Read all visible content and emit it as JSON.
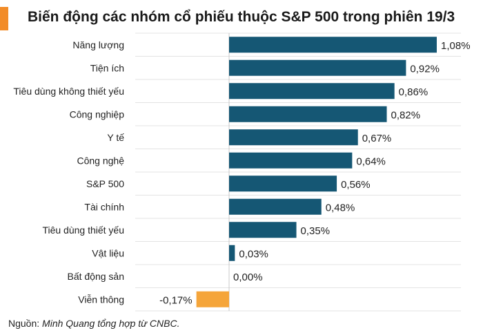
{
  "title": "Biến động các nhóm cổ phiếu thuộc S&P 500 trong phiên 19/3",
  "source_label": "Nguồn:",
  "source_text": "Minh Quang tổng hợp từ CNBC.",
  "colors": {
    "positive": "#155774",
    "negative": "#f5a53a",
    "accent": "#f28c28"
  },
  "chart_data": {
    "type": "bar",
    "orientation": "horizontal",
    "title": "Biến động các nhóm cổ phiếu thuộc S&P 500 trong phiên 19/3",
    "grid": true,
    "categories": [
      "Năng lượng",
      "Tiện ích",
      "Tiêu dùng không thiết yếu",
      "Công nghiệp",
      "Y tế",
      "Công nghệ",
      "S&P 500",
      "Tài chính",
      "Tiêu dùng thiết yếu",
      "Vật liệu",
      "Bất động sản",
      "Viễn thông"
    ],
    "values": [
      1.08,
      0.92,
      0.86,
      0.82,
      0.67,
      0.64,
      0.56,
      0.48,
      0.35,
      0.03,
      0.0,
      -0.17
    ],
    "value_labels": [
      "1,08%",
      "0,92%",
      "0,86%",
      "0,82%",
      "0,67%",
      "0,64%",
      "0,56%",
      "0,48%",
      "0,35%",
      "0,03%",
      "0,00%",
      "-0,17%"
    ],
    "xlim": [
      -0.17,
      1.08
    ]
  }
}
